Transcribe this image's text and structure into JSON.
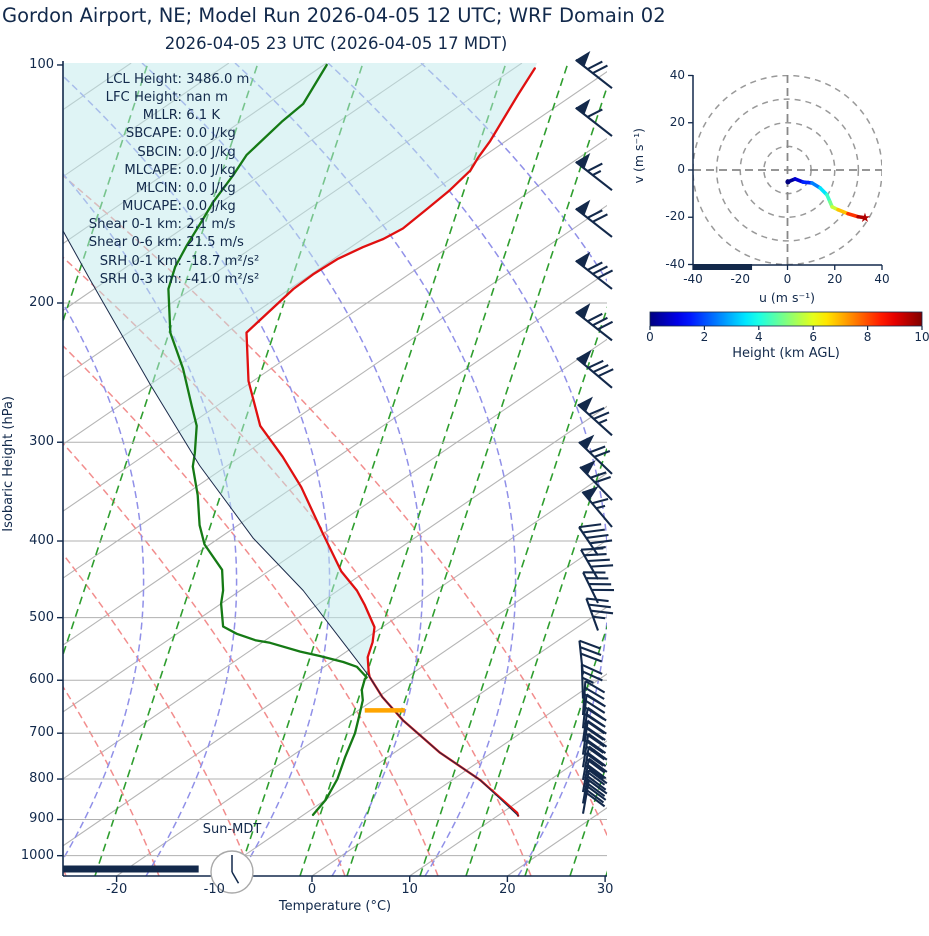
{
  "title": "Gordon Airport, NE; Model Run 2026-04-05 12 UTC; WRF Domain 02",
  "subtitle": "2026-04-05 23 UTC  (2026-04-05 17 MDT)",
  "chart_data": {
    "type": "skewt-sounding",
    "skewt": {
      "xlabel": "Temperature (°C)",
      "ylabel": "Isobaric Height (hPa)",
      "x_ticks": [
        -20,
        -10,
        0,
        10,
        20,
        30
      ],
      "x_range_plot_coords": [
        -25.5,
        30.2
      ],
      "p_ticks": [
        100,
        200,
        300,
        400,
        500,
        600,
        700,
        800,
        900,
        1000
      ],
      "p_range": [
        99,
        1060
      ],
      "note": "x values of profiles are skewed plot coordinates in degC at the baseline; isotherms slant up-right",
      "stats": [
        {
          "label": "LCL Height",
          "value": "3486.0 m"
        },
        {
          "label": "LFC Height",
          "value": "nan m"
        },
        {
          "label": "MLLR",
          "value": "6.1 K"
        },
        {
          "label": "SBCAPE",
          "value": "0.0 J/kg"
        },
        {
          "label": "SBCIN",
          "value": "0.0 J/kg"
        },
        {
          "label": "MLCAPE",
          "value": "0.0 J/kg"
        },
        {
          "label": "MLCIN",
          "value": "0.0 J/kg"
        },
        {
          "label": "MUCAPE",
          "value": "0.0 J/kg"
        },
        {
          "label": "Shear 0-1 km",
          "value": "2.1 m/s"
        },
        {
          "label": "Shear 0-6 km",
          "value": "21.5 m/s"
        },
        {
          "label": "SRH 0-1 km",
          "value": "-18.7 m²/s²"
        },
        {
          "label": "SRH 0-3 km",
          "value": "-41.0 m²/s²"
        }
      ],
      "temperature_profile": [
        [
          101,
          22.8
        ],
        [
          109,
          21.1
        ],
        [
          117,
          19.6
        ],
        [
          125,
          18.2
        ],
        [
          131,
          17.0
        ],
        [
          136,
          16.2
        ],
        [
          144,
          14.1
        ],
        [
          152,
          11.8
        ],
        [
          161,
          9.3
        ],
        [
          166,
          7.3
        ],
        [
          170,
          5.2
        ],
        [
          176,
          2.6
        ],
        [
          184,
          0.1
        ],
        [
          192,
          -1.9
        ],
        [
          218,
          -6.7
        ],
        [
          251,
          -6.5
        ],
        [
          286,
          -5.3
        ],
        [
          313,
          -3.0
        ],
        [
          342,
          -1.1
        ],
        [
          391,
          1.1
        ],
        [
          437,
          3.0
        ],
        [
          462,
          4.6
        ],
        [
          482,
          5.4
        ],
        [
          514,
          6.4
        ],
        [
          537,
          6.2
        ],
        [
          561,
          5.7
        ],
        [
          586,
          5.8
        ],
        [
          594,
          5.9
        ],
        [
          630,
          7.2
        ],
        [
          674,
          9.3
        ],
        [
          741,
          13.1
        ],
        [
          802,
          17.2
        ],
        [
          883,
          21.0
        ],
        [
          890,
          21.1
        ]
      ],
      "dewpoint_profile": [
        [
          100,
          1.5
        ],
        [
          112,
          -0.9
        ],
        [
          118,
          -3.1
        ],
        [
          130,
          -6.7
        ],
        [
          138,
          -8.1
        ],
        [
          149,
          -10.1
        ],
        [
          157,
          -11.2
        ],
        [
          169,
          -12.8
        ],
        [
          180,
          -14.0
        ],
        [
          192,
          -14.7
        ],
        [
          218,
          -14.5
        ],
        [
          242,
          -13.2
        ],
        [
          270,
          -12.3
        ],
        [
          286,
          -11.8
        ],
        [
          310,
          -12.0
        ],
        [
          322,
          -12.2
        ],
        [
          350,
          -11.7
        ],
        [
          382,
          -11.5
        ],
        [
          404,
          -11.0
        ],
        [
          435,
          -9.2
        ],
        [
          462,
          -9.1
        ],
        [
          480,
          -9.3
        ],
        [
          513,
          -9.1
        ],
        [
          524,
          -7.7
        ],
        [
          534,
          -5.8
        ],
        [
          538,
          -4.3
        ],
        [
          552,
          -1.2
        ],
        [
          559,
          0.8
        ],
        [
          569,
          3.2
        ],
        [
          577,
          4.6
        ],
        [
          595,
          5.6
        ],
        [
          598,
          5.4
        ],
        [
          617,
          5.1
        ],
        [
          636,
          5.2
        ],
        [
          660,
          4.9
        ],
        [
          700,
          4.4
        ],
        [
          750,
          3.4
        ],
        [
          800,
          2.6
        ],
        [
          850,
          1.4
        ],
        [
          876,
          0.5
        ],
        [
          888,
          0.1
        ]
      ],
      "parcel_profile": [
        [
          162,
          -25.5
        ],
        [
          187,
          -22.7
        ],
        [
          253,
          -16.6
        ],
        [
          321,
          -11.5
        ],
        [
          397,
          -6.0
        ],
        [
          462,
          -0.9
        ],
        [
          594,
          5.9
        ],
        [
          630,
          7.2
        ],
        [
          674,
          9.3
        ],
        [
          741,
          13.1
        ],
        [
          802,
          17.2
        ],
        [
          890,
          21.1
        ]
      ],
      "lcl_marker": {
        "pressure_hPa": 655,
        "x_from": 5.4,
        "x_to": 9.5,
        "color": "#ffa500"
      },
      "surface_bar": {
        "x_from": -25.5,
        "x_to": -11.6,
        "color": "#13294b"
      },
      "clock": {
        "label": "Sun-MDT",
        "time": "17:00"
      },
      "wind_barbs": [
        {
          "p": 107,
          "rot": -52,
          "pen": 1,
          "full": 2,
          "half": 0
        },
        {
          "p": 123,
          "rot": -52,
          "pen": 1,
          "full": 1,
          "half": 0
        },
        {
          "p": 144,
          "rot": -52,
          "pen": 1,
          "full": 1,
          "half": 1
        },
        {
          "p": 165,
          "rot": -52,
          "pen": 1,
          "full": 2,
          "half": 0
        },
        {
          "p": 192,
          "rot": -52,
          "pen": 1,
          "full": 3,
          "half": 0
        },
        {
          "p": 223,
          "rot": -52,
          "pen": 1,
          "full": 3,
          "half": 0
        },
        {
          "p": 256,
          "rot": -50,
          "pen": 1,
          "full": 3,
          "half": 0
        },
        {
          "p": 294,
          "rot": -48,
          "pen": 1,
          "full": 2,
          "half": 1
        },
        {
          "p": 329,
          "rot": -46,
          "pen": 1,
          "full": 2,
          "half": 0
        },
        {
          "p": 355,
          "rot": -44,
          "pen": 1,
          "full": 2,
          "half": 0
        },
        {
          "p": 384,
          "rot": -40,
          "pen": 1,
          "full": 1,
          "half": 1
        },
        {
          "p": 417,
          "rot": -34,
          "pen": 0,
          "full": 4,
          "half": 1
        },
        {
          "p": 447,
          "rot": -30,
          "pen": 0,
          "full": 4,
          "half": 0
        },
        {
          "p": 479,
          "rot": -26,
          "pen": 0,
          "full": 4,
          "half": 0
        },
        {
          "p": 519,
          "rot": -20,
          "pen": 0,
          "full": 3,
          "half": 1
        },
        {
          "p": 590,
          "rot": -6,
          "pen": 0,
          "full": 3,
          "half": 0
        },
        {
          "p": 633,
          "rot": -2,
          "pen": 0,
          "full": 2,
          "half": 1
        },
        {
          "p": 664,
          "rot": 4,
          "pen": 0,
          "full": 3,
          "half": 0
        },
        {
          "p": 690,
          "rot": 6,
          "pen": 0,
          "full": 4,
          "half": 0
        },
        {
          "p": 717,
          "rot": 8,
          "pen": 0,
          "full": 4,
          "half": 0
        },
        {
          "p": 745,
          "rot": 8,
          "pen": 0,
          "full": 4,
          "half": 0
        },
        {
          "p": 773,
          "rot": 9,
          "pen": 0,
          "full": 4,
          "half": 0
        },
        {
          "p": 802,
          "rot": 10,
          "pen": 0,
          "full": 4,
          "half": 0
        },
        {
          "p": 831,
          "rot": 10,
          "pen": 0,
          "full": 4,
          "half": 0
        },
        {
          "p": 859,
          "rot": 10,
          "pen": 0,
          "full": 4,
          "half": 0
        },
        {
          "p": 885,
          "rot": 10,
          "pen": 0,
          "full": 3,
          "half": 0
        }
      ]
    },
    "hodograph": {
      "xlabel": "u (m s⁻¹)",
      "ylabel": "v (m s⁻¹)",
      "ticks": [
        -40,
        -20,
        0,
        20,
        40
      ],
      "range": [
        -40,
        40
      ],
      "rings": [
        10,
        20,
        30,
        40
      ],
      "trace_u_v_heightkm": [
        [
          0.2,
          -5.0,
          0
        ],
        [
          3.2,
          -3.8,
          0.5
        ],
        [
          6.6,
          -5.1,
          1.2
        ],
        [
          10.4,
          -5.5,
          2.0
        ],
        [
          13.8,
          -7.6,
          3.0
        ],
        [
          16.7,
          -10.5,
          4.0
        ],
        [
          18.0,
          -13.5,
          4.6
        ],
        [
          18.9,
          -15.6,
          5.2
        ],
        [
          21.4,
          -16.8,
          6.2
        ],
        [
          25.6,
          -18.5,
          7.5
        ],
        [
          29.9,
          -19.8,
          9.0
        ],
        [
          32.8,
          -20.2,
          10.0
        ]
      ],
      "end_marker": "★",
      "end_marker_color": "#b00000",
      "baseline_bar": {
        "u_from": -40,
        "u_to": -15
      }
    },
    "colorbar": {
      "label": "Height (km AGL)",
      "ticks": [
        0,
        2,
        4,
        6,
        8,
        10
      ],
      "min": 0,
      "max": 10,
      "colormap": "jet"
    }
  },
  "colors": {
    "temperature": "#e01010",
    "dewpoint": "#157a15",
    "parcel": "#1b2a4a",
    "cin_shade": "#bfe9ec",
    "lcl": "#ffa500",
    "barbs": "#13294b",
    "isotherm": "#b5b5b5",
    "dry_adiabat": "#f28d8d",
    "moist_adiabat": "#9090e8",
    "mixing_ratio": "#2f9e2f",
    "text": "#12294b",
    "grid_h": "#b0b0b0"
  }
}
